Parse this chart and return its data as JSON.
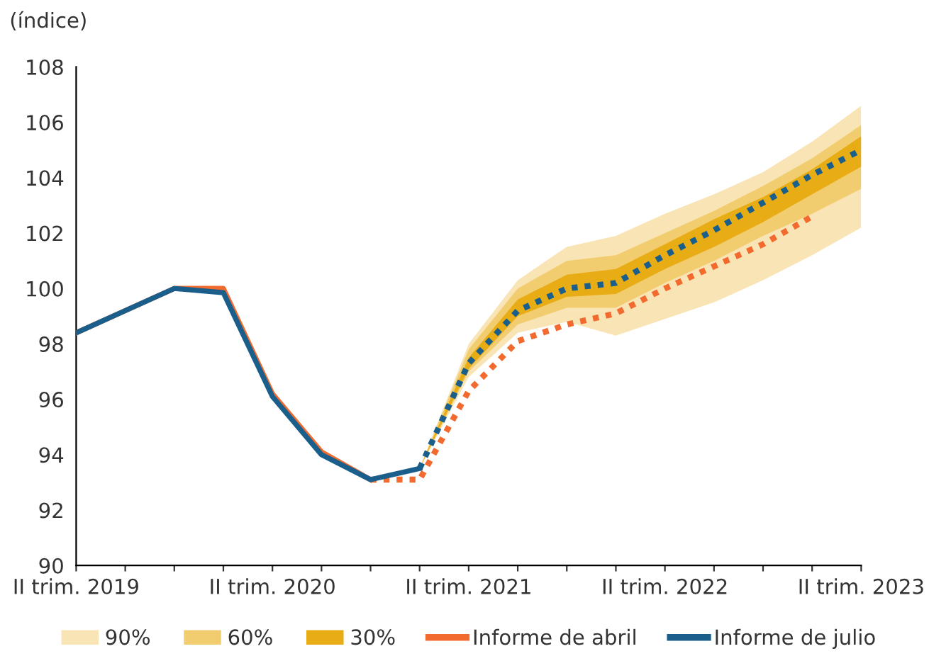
{
  "chart_data": {
    "type": "line",
    "ylabel": "(índice)",
    "categories": [
      "II trim. 2019",
      null,
      null,
      null,
      "II trim. 2020",
      null,
      null,
      null,
      "II trim. 2021",
      null,
      null,
      null,
      "II trim. 2022",
      null,
      null,
      null,
      "II trim. 2023"
    ],
    "ylim": [
      90,
      108
    ],
    "yticks": [
      90,
      92,
      94,
      96,
      98,
      100,
      102,
      104,
      106,
      108
    ],
    "grid": false,
    "legend": "bottom",
    "marker": "none",
    "series": [
      {
        "type": "area",
        "name": "90%",
        "color": "#f9e4b5",
        "values": [
          null,
          null,
          null,
          null,
          null,
          null,
          null,
          null,
          null,
          null,
          null,
          null,
          null,
          null,
          null,
          null,
          null
        ],
        "lower": [
          null,
          null,
          null,
          null,
          null,
          null,
          null,
          93.5,
          96.8,
          98.4,
          98.8,
          98.3,
          98.9,
          99.5,
          100.3,
          101.2,
          102.2
        ],
        "upper": [
          null,
          null,
          null,
          null,
          null,
          null,
          null,
          93.5,
          98.0,
          100.3,
          101.5,
          101.9,
          102.7,
          103.4,
          104.2,
          105.3,
          106.6
        ]
      },
      {
        "type": "area",
        "name": "60%",
        "color": "#f2cd70",
        "values": [
          null,
          null,
          null,
          null,
          null,
          null,
          null,
          null,
          null,
          null,
          null,
          null,
          null,
          null,
          null,
          null,
          null
        ],
        "lower": [
          null,
          null,
          null,
          null,
          null,
          null,
          null,
          93.5,
          97.0,
          98.7,
          99.3,
          99.3,
          100.2,
          101.0,
          101.9,
          102.7,
          103.6
        ],
        "upper": [
          null,
          null,
          null,
          null,
          null,
          null,
          null,
          93.5,
          97.8,
          100.0,
          101.0,
          101.2,
          102.0,
          102.8,
          103.7,
          104.7,
          105.9
        ]
      },
      {
        "type": "area",
        "name": "30%",
        "color": "#e8ac14",
        "values": [
          null,
          null,
          null,
          null,
          null,
          null,
          null,
          null,
          null,
          null,
          null,
          null,
          null,
          null,
          null,
          null,
          null
        ],
        "lower": [
          null,
          null,
          null,
          null,
          null,
          null,
          null,
          93.5,
          97.1,
          99.0,
          99.7,
          99.8,
          100.7,
          101.5,
          102.4,
          103.4,
          104.4
        ],
        "upper": [
          null,
          null,
          null,
          null,
          null,
          null,
          null,
          93.5,
          97.5,
          99.6,
          100.5,
          100.7,
          101.6,
          102.5,
          103.3,
          104.3,
          105.5
        ]
      },
      {
        "name": "Informe de abril",
        "color": "#f26a2e",
        "line_style": "solid",
        "values": [
          98.4,
          99.2,
          100.0,
          100.0,
          96.2,
          94.1,
          93.1,
          null,
          null,
          null,
          null,
          null,
          null,
          null,
          null,
          null,
          null
        ]
      },
      {
        "color": "#f26a2e",
        "line_style": "dotted",
        "values": [
          null,
          null,
          null,
          null,
          null,
          null,
          93.1,
          93.1,
          96.3,
          98.1,
          98.7,
          99.1,
          100.0,
          100.8,
          101.6,
          102.6,
          null
        ]
      },
      {
        "name": "Informe de julio",
        "color": "#1a5f8c",
        "line_style": "solid",
        "values": [
          98.4,
          99.2,
          100.0,
          99.85,
          96.1,
          94.0,
          93.1,
          93.5,
          null,
          null,
          null,
          null,
          null,
          null,
          null,
          null,
          null
        ]
      },
      {
        "color": "#1a5f8c",
        "line_style": "dotted",
        "values": [
          null,
          null,
          null,
          null,
          null,
          null,
          null,
          93.5,
          97.3,
          99.2,
          100.0,
          100.2,
          101.2,
          102.1,
          103.1,
          104.1,
          105.0
        ]
      }
    ]
  }
}
